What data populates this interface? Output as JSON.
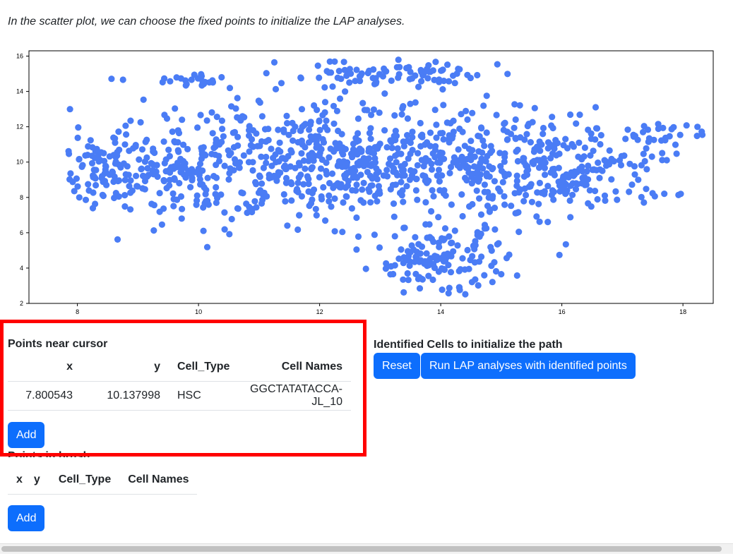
{
  "intro_text": "In the scatter plot, we can choose the fixed points to initialize the LAP analyses.",
  "colors": {
    "point": "#4a7cf5",
    "button": "#0d6efd",
    "highlight": "#ff0000"
  },
  "chart_data": {
    "type": "scatter",
    "title": "",
    "xlabel": "",
    "ylabel": "",
    "xlim": [
      7.2,
      18.5
    ],
    "ylim": [
      2.0,
      16.3
    ],
    "x_ticks": [
      "8",
      "10",
      "12",
      "14",
      "16",
      "18"
    ],
    "y_ticks": [
      "2",
      "4",
      "6",
      "8",
      "10",
      "12",
      "14",
      "16"
    ],
    "grid": false,
    "series": [
      {
        "color": "#4a7cf5",
        "clusters": [
          {
            "cx": 12.5,
            "cy": 10.0,
            "sx": 2.0,
            "sy": 1.6,
            "n": 750
          },
          {
            "cx": 9.0,
            "cy": 9.6,
            "sx": 1.0,
            "sy": 1.2,
            "n": 170
          },
          {
            "cx": 16.0,
            "cy": 9.4,
            "sx": 0.9,
            "sy": 1.2,
            "n": 190
          },
          {
            "cx": 17.8,
            "cy": 11.6,
            "sx": 0.5,
            "sy": 0.35,
            "n": 30
          },
          {
            "cx": 14.0,
            "cy": 4.4,
            "sx": 0.55,
            "sy": 1.0,
            "n": 150
          },
          {
            "cx": 9.9,
            "cy": 14.6,
            "sx": 0.45,
            "sy": 0.15,
            "n": 22
          },
          {
            "cx": 13.2,
            "cy": 14.9,
            "sx": 0.9,
            "sy": 0.45,
            "n": 90
          },
          {
            "cx": 8.1,
            "cy": 9.2,
            "sx": 0.3,
            "sy": 0.9,
            "n": 30
          }
        ]
      }
    ]
  },
  "near_cursor": {
    "title": "Points near cursor",
    "headers": [
      "x",
      "y",
      "Cell_Type",
      "Cell Names"
    ],
    "rows": [
      [
        "7.800543",
        "10.137998",
        "HSC",
        "GGCTATATACCA-JL_10"
      ]
    ],
    "add_label": "Add"
  },
  "in_brush": {
    "title": "Points in brush",
    "headers": [
      "x",
      "y",
      "Cell_Type",
      "Cell Names"
    ],
    "add_label": "Add"
  },
  "identified": {
    "title": "Identified Cells to initialize the path",
    "reset_label": "Reset",
    "run_label": "Run LAP analyses with identified points"
  }
}
